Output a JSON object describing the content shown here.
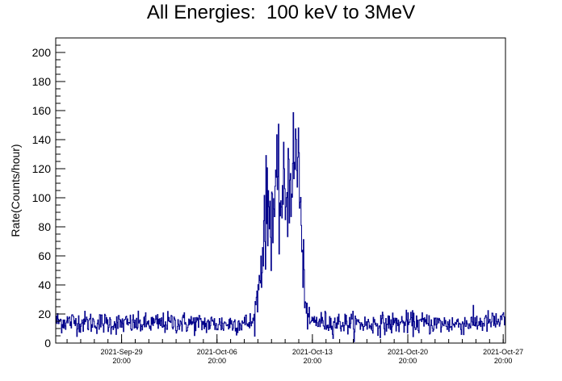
{
  "chart_data": {
    "type": "line",
    "title": "All Energies:  100 keV to 3MeV",
    "xlabel": "",
    "ylabel": "Rate(Counts/hour)",
    "xlim": [
      "2021-09-25 00:00",
      "2021-10-28 00:00"
    ],
    "ylim": [
      0,
      210
    ],
    "grid": false,
    "series_color": "#00008b",
    "x_tick_labels": [
      {
        "date": "2021-Sep-29",
        "time": "20:00"
      },
      {
        "date": "2021-Oct-06",
        "time": "20:00"
      },
      {
        "date": "2021-Oct-13",
        "time": "20:00"
      },
      {
        "date": "2021-Oct-20",
        "time": "20:00"
      },
      {
        "date": "2021-Oct-27",
        "time": "20:00"
      }
    ],
    "y_tick_labels": [
      "0",
      "20",
      "40",
      "60",
      "80",
      "100",
      "120",
      "140",
      "160",
      "180",
      "200"
    ],
    "y_ticks": [
      0,
      20,
      40,
      60,
      80,
      100,
      120,
      140,
      160,
      180,
      200
    ],
    "series": [
      {
        "x": [
          "2021-09-25 00:00",
          "2021-09-28 00:00",
          "2021-10-01 00:00",
          "2021-10-04 00:00",
          "2021-10-07 00:00",
          "2021-10-09 12:00",
          "2021-10-10 00:00",
          "2021-10-10 08:00",
          "2021-10-10 20:00",
          "2021-10-11 06:00",
          "2021-10-11 12:00",
          "2021-10-11 18:00",
          "2021-10-12 00:00",
          "2021-10-12 06:00",
          "2021-10-12 12:00",
          "2021-10-12 20:00",
          "2021-10-13 02:00",
          "2021-10-13 12:00",
          "2021-10-14 00:00",
          "2021-10-15 00:00",
          "2021-10-18 00:00",
          "2021-10-21 00:00",
          "2021-10-24 00:00",
          "2021-10-28 00:00"
        ],
        "y": [
          15,
          14,
          13,
          14,
          13,
          14,
          45,
          88,
          92,
          100,
          98,
          96,
          108,
          118,
          122,
          130,
          55,
          14,
          15,
          14,
          13,
          14,
          13,
          15
        ]
      }
    ]
  }
}
